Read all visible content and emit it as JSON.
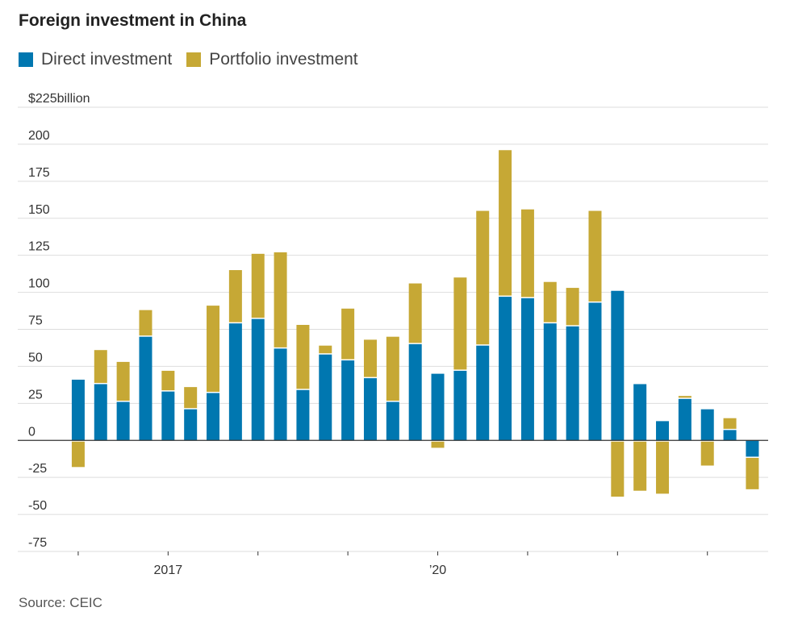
{
  "title": "Foreign investment in China",
  "source": "Source: CEIC",
  "colors": {
    "direct": "#0077b0",
    "portfolio": "#c6a835",
    "grid": "#dddddd",
    "axis": "#333333"
  },
  "chart_data": {
    "type": "bar",
    "stacked": true,
    "title": "Foreign investment in China",
    "y_unit_label": "$225billion",
    "ylim": [
      -75,
      225
    ],
    "y_ticks": [
      {
        "value": 225,
        "label": "$225billion"
      },
      {
        "value": 200,
        "label": "200"
      },
      {
        "value": 175,
        "label": "175"
      },
      {
        "value": 150,
        "label": "150"
      },
      {
        "value": 125,
        "label": "125"
      },
      {
        "value": 100,
        "label": "100"
      },
      {
        "value": 75,
        "label": "75"
      },
      {
        "value": 50,
        "label": "50"
      },
      {
        "value": 25,
        "label": "25"
      },
      {
        "value": 0,
        "label": "0"
      },
      {
        "value": -25,
        "label": "-25"
      },
      {
        "value": -50,
        "label": "-50"
      },
      {
        "value": -75,
        "label": "-75"
      }
    ],
    "x_tick_labels": [
      {
        "index": 4.5,
        "label": "2017"
      },
      {
        "index": 16.5,
        "label": "’20"
      }
    ],
    "x_minor_ticks_at_index": [
      0.5,
      4.5,
      8.5,
      12.5,
      16.5,
      20.5,
      24.5,
      28.5
    ],
    "series": [
      {
        "name": "Direct investment",
        "values": [
          41,
          38,
          26,
          70,
          33,
          21,
          32,
          79,
          82,
          62,
          34,
          58,
          54,
          42,
          26,
          65,
          45,
          47,
          64,
          97,
          96,
          79,
          77,
          93,
          101,
          38,
          13,
          28,
          21,
          7,
          -11
        ]
      },
      {
        "name": "Portfolio investment",
        "values": [
          -18,
          23,
          27,
          18,
          14,
          15,
          59,
          36,
          44,
          65,
          44,
          6,
          35,
          26,
          44,
          41,
          -5,
          63,
          91,
          99,
          60,
          28,
          26,
          62,
          -38,
          -34,
          -36,
          2,
          -17,
          8,
          -22
        ]
      }
    ]
  }
}
